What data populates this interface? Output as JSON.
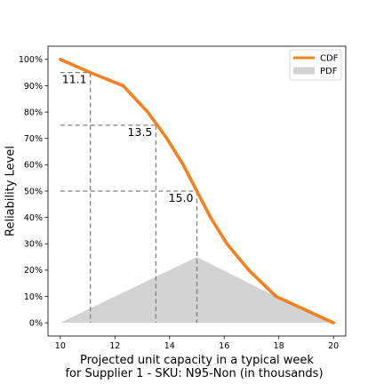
{
  "chart_data": {
    "type": "line",
    "title": "",
    "xlabel_lines": [
      "Projected unit capacity in a typical week",
      "for Supplier 1 - SKU: N95-Non (in thousands)"
    ],
    "ylabel": "Reliability Level",
    "xlim": [
      9.55,
      20.45
    ],
    "ylim": [
      -0.05,
      1.05
    ],
    "x_ticks": [
      10,
      12,
      14,
      16,
      18,
      20
    ],
    "x_tick_labels": [
      "10",
      "12",
      "14",
      "16",
      "18",
      "20"
    ],
    "y_ticks": [
      0,
      0.1,
      0.2,
      0.3,
      0.4,
      0.5,
      0.6,
      0.7,
      0.8,
      0.9,
      1.0
    ],
    "y_tick_labels": [
      "0%",
      "10%",
      "20%",
      "30%",
      "40%",
      "50%",
      "60%",
      "70%",
      "80%",
      "90%",
      "100%"
    ],
    "grid": false,
    "legend_position": "top-right",
    "series": [
      {
        "name": "CDF",
        "kind": "line",
        "color": "#f5801e",
        "x": [
          10,
          11.1,
          12.3,
          13.2,
          13.9,
          14.5,
          15.0,
          15.5,
          16.1,
          16.9,
          17.9,
          20
        ],
        "y": [
          1.0,
          0.95,
          0.9,
          0.8,
          0.7,
          0.6,
          0.5,
          0.4,
          0.3,
          0.2,
          0.1,
          0.0
        ]
      },
      {
        "name": "PDF",
        "kind": "area",
        "color": "#d3d3d3",
        "x": [
          10,
          15,
          17.5,
          20
        ],
        "y": [
          0.0,
          0.25,
          0.12,
          0.0
        ]
      }
    ],
    "annotations": [
      {
        "label": "11.1",
        "x": 11.1,
        "level": 0.95
      },
      {
        "label": "13.5",
        "x": 13.5,
        "level": 0.75
      },
      {
        "label": "15.0",
        "x": 15.0,
        "level": 0.5
      }
    ]
  }
}
